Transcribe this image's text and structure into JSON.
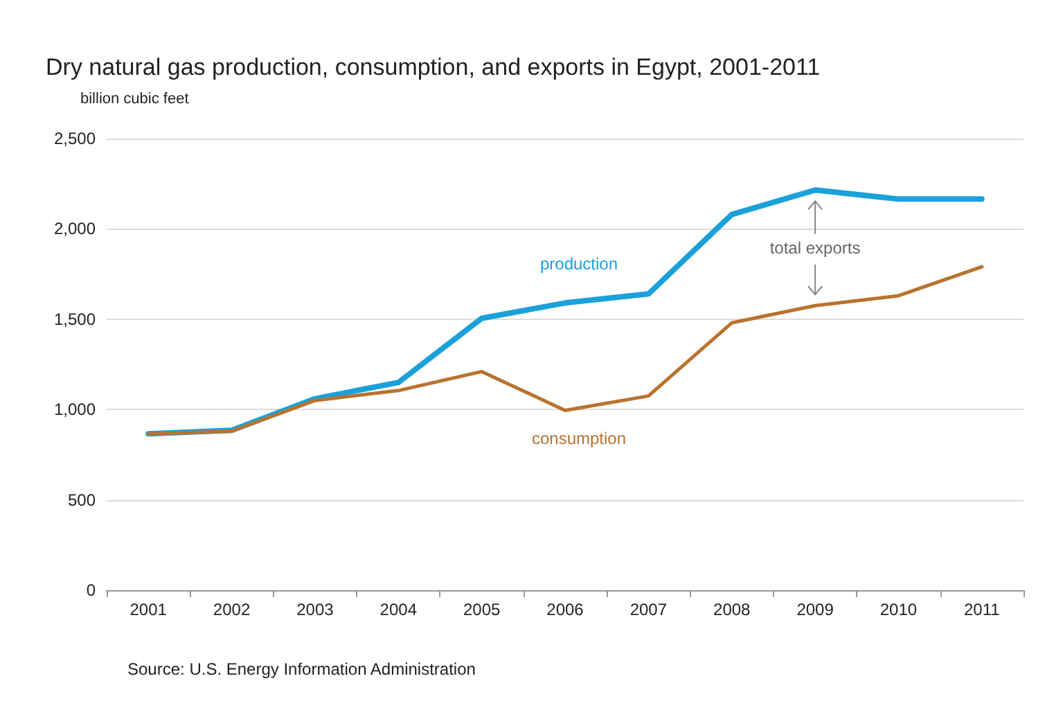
{
  "chart_data": {
    "type": "line",
    "title": "Dry natural gas production, consumption, and exports in Egypt, 2001-2011",
    "ylabel": "billion cubic feet",
    "categories": [
      "2001",
      "2002",
      "2003",
      "2004",
      "2005",
      "2006",
      "2007",
      "2008",
      "2009",
      "2010",
      "2011"
    ],
    "series": [
      {
        "name": "production",
        "color": "#1ba1d9",
        "values": [
          866,
          885,
          1060,
          1150,
          1505,
          1590,
          1640,
          2080,
          2215,
          2165,
          2165
        ]
      },
      {
        "name": "consumption",
        "color": "#b8732f",
        "values": [
          866,
          880,
          1050,
          1105,
          1210,
          995,
          1075,
          1480,
          1575,
          1630,
          1790
        ]
      }
    ],
    "ylim": [
      0,
      2500
    ],
    "yticks": [
      {
        "value": 0,
        "label": "0"
      },
      {
        "value": 500,
        "label": "500"
      },
      {
        "value": 1000,
        "label": "1,000"
      },
      {
        "value": 1500,
        "label": "1,500"
      },
      {
        "value": 2000,
        "label": "2,000"
      },
      {
        "value": 2500,
        "label": "2,500"
      }
    ],
    "grid": "y",
    "legend": false,
    "marker": "none",
    "line_style": "solid",
    "annotations": [
      "total exports",
      "Source: U.S. Energy Information Administration"
    ]
  }
}
